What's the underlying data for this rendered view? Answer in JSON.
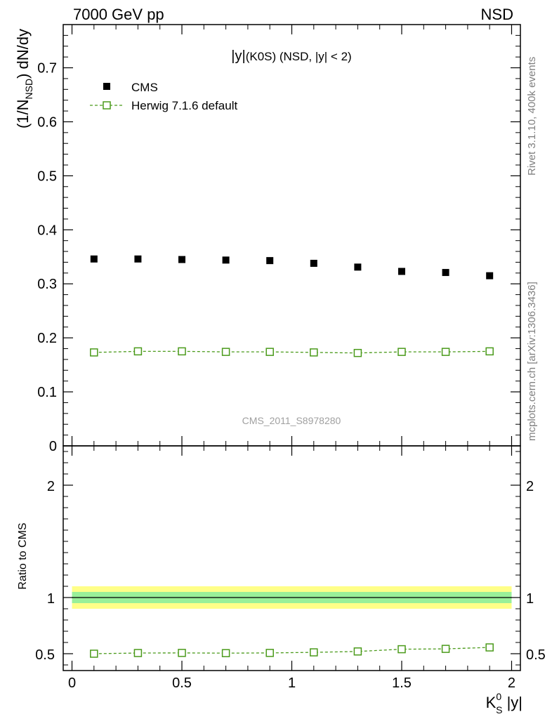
{
  "header": {
    "energy_label": "7000 GeV pp",
    "process_label": "NSD"
  },
  "side_labels": {
    "rivet": "Rivet 3.1.10,  400k events",
    "mcplots": "mcplots.cern.ch [arXiv:1306.3436]"
  },
  "chart_data": [
    {
      "type": "scatter",
      "panel": "main",
      "title": "|y|(K0S) (NSD, |y| < 2)",
      "title_parts": {
        "prefix": "|y|",
        "suffix": "(K0S) (NSD, |y| < 2)"
      },
      "ylabel": {
        "prefix": "(1/N",
        "sub": "NSD",
        "suffix": ") dN/dy"
      },
      "watermark": "CMS_2011_S8978280",
      "xlim": [
        -0.04,
        2.04
      ],
      "ylim": [
        0,
        0.78
      ],
      "y_ticks": [
        0,
        0.1,
        0.2,
        0.3,
        0.4,
        0.5,
        0.6,
        0.7
      ],
      "y_tick_labels": [
        "0",
        "0.1",
        "0.2",
        "0.3",
        "0.4",
        "0.5",
        "0.6",
        "0.7"
      ],
      "legend_position": "top-left",
      "series": [
        {
          "name": "CMS",
          "style": "filled-square",
          "color": "#000000",
          "x": [
            0.1,
            0.3,
            0.5,
            0.7,
            0.9,
            1.1,
            1.3,
            1.5,
            1.7,
            1.9
          ],
          "values": [
            0.346,
            0.346,
            0.345,
            0.344,
            0.343,
            0.338,
            0.331,
            0.323,
            0.321,
            0.315
          ]
        },
        {
          "name": "Herwig 7.1.6 default",
          "style": "open-square-dashed",
          "color": "#4a9a1a",
          "x": [
            0.1,
            0.3,
            0.5,
            0.7,
            0.9,
            1.1,
            1.3,
            1.5,
            1.7,
            1.9
          ],
          "values": [
            0.173,
            0.175,
            0.175,
            0.174,
            0.174,
            0.173,
            0.172,
            0.174,
            0.174,
            0.175
          ]
        }
      ]
    },
    {
      "type": "line",
      "panel": "ratio",
      "ylabel": "Ratio to CMS",
      "xlabel": {
        "main": "K",
        "sup": "0",
        "sub": "S",
        "suffix": " |y|"
      },
      "xlim": [
        -0.04,
        2.04
      ],
      "ylim": [
        0.35,
        2.35
      ],
      "x_ticks": [
        0,
        0.5,
        1,
        1.5,
        2
      ],
      "x_tick_labels": [
        "0",
        "0.5",
        "1",
        "1.5",
        "2"
      ],
      "y_ticks": [
        0.5,
        1,
        2
      ],
      "y_tick_labels": [
        "0.5",
        "1",
        "2"
      ],
      "bands": [
        {
          "name": "yellow",
          "color": "#ffff88",
          "low": 0.9,
          "high": 1.1
        },
        {
          "name": "green",
          "color": "#99f099",
          "low": 0.95,
          "high": 1.05
        }
      ],
      "reference_line": 1.0,
      "band_range": [
        0,
        2
      ],
      "series": [
        {
          "name": "Herwig 7.1.6 default",
          "color": "#4a9a1a",
          "x": [
            0.1,
            0.3,
            0.5,
            0.7,
            0.9,
            1.1,
            1.3,
            1.5,
            1.7,
            1.9
          ],
          "values": [
            0.5,
            0.506,
            0.507,
            0.505,
            0.507,
            0.512,
            0.52,
            0.54,
            0.543,
            0.556
          ]
        }
      ]
    }
  ]
}
